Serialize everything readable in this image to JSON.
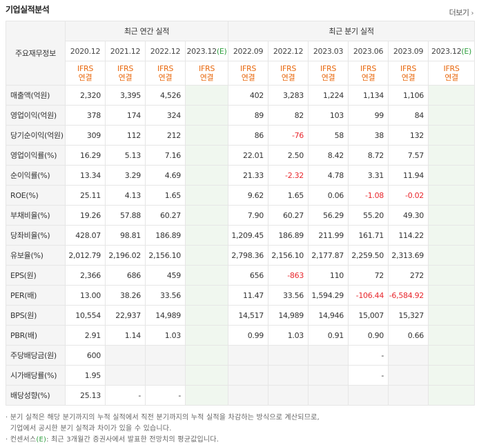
{
  "header": {
    "title": "기업실적분석",
    "more_label": "더보기"
  },
  "table": {
    "label_header": "주요재무정보",
    "annual_group": "최근 연간 실적",
    "quarter_group": "최근 분기 실적",
    "periods": [
      "2020.12",
      "2021.12",
      "2022.12",
      "2023.12",
      "2022.09",
      "2022.12",
      "2023.03",
      "2023.06",
      "2023.09",
      "2023.12"
    ],
    "estimate_suffix": "(E)",
    "basis_top": "IFRS",
    "basis_bottom": "연결",
    "rows": [
      {
        "label": "매출액(억원)",
        "values": [
          "2,320",
          "3,395",
          "4,526",
          "",
          "402",
          "3,283",
          "1,224",
          "1,134",
          "1,106",
          ""
        ]
      },
      {
        "label": "영업이익(억원)",
        "values": [
          "378",
          "174",
          "324",
          "",
          "89",
          "82",
          "103",
          "99",
          "84",
          ""
        ]
      },
      {
        "label": "당기순이익(억원)",
        "values": [
          "309",
          "112",
          "212",
          "",
          "86",
          "-76",
          "58",
          "38",
          "132",
          ""
        ]
      },
      {
        "label": "영업이익률(%)",
        "values": [
          "16.29",
          "5.13",
          "7.16",
          "",
          "22.01",
          "2.50",
          "8.42",
          "8.72",
          "7.57",
          ""
        ]
      },
      {
        "label": "순이익률(%)",
        "values": [
          "13.34",
          "3.29",
          "4.69",
          "",
          "21.33",
          "-2.32",
          "4.78",
          "3.31",
          "11.94",
          ""
        ]
      },
      {
        "label": "ROE(%)",
        "values": [
          "25.11",
          "4.13",
          "1.65",
          "",
          "9.62",
          "1.65",
          "0.06",
          "-1.08",
          "-0.02",
          ""
        ]
      },
      {
        "label": "부채비율(%)",
        "values": [
          "19.26",
          "57.88",
          "60.27",
          "",
          "7.90",
          "60.27",
          "56.29",
          "55.20",
          "49.30",
          ""
        ]
      },
      {
        "label": "당좌비율(%)",
        "values": [
          "428.07",
          "98.81",
          "186.89",
          "",
          "1,209.45",
          "186.89",
          "211.99",
          "161.71",
          "114.22",
          ""
        ]
      },
      {
        "label": "유보율(%)",
        "values": [
          "2,012.79",
          "2,196.02",
          "2,156.10",
          "",
          "2,798.36",
          "2,156.10",
          "2,177.87",
          "2,259.50",
          "2,313.69",
          ""
        ]
      },
      {
        "label": "EPS(원)",
        "values": [
          "2,366",
          "686",
          "459",
          "",
          "656",
          "-863",
          "110",
          "72",
          "272",
          ""
        ]
      },
      {
        "label": "PER(배)",
        "values": [
          "13.00",
          "38.26",
          "33.56",
          "",
          "11.47",
          "33.56",
          "1,594.29",
          "-106.44",
          "-6,584.92",
          ""
        ]
      },
      {
        "label": "BPS(원)",
        "values": [
          "10,554",
          "22,937",
          "14,989",
          "",
          "14,517",
          "14,989",
          "14,946",
          "15,007",
          "15,327",
          ""
        ]
      },
      {
        "label": "PBR(배)",
        "values": [
          "2.91",
          "1.14",
          "1.03",
          "",
          "0.99",
          "1.03",
          "0.91",
          "0.90",
          "0.66",
          ""
        ]
      },
      {
        "label": "주당배당금(원)",
        "values": [
          "600",
          "",
          "",
          "",
          "",
          "",
          "",
          "-",
          "",
          ""
        ]
      },
      {
        "label": "시가배당률(%)",
        "values": [
          "1.95",
          "",
          "",
          "",
          "",
          "",
          "",
          "-",
          "",
          ""
        ]
      },
      {
        "label": "배당성향(%)",
        "values": [
          "25.13",
          "-",
          "-",
          "",
          "",
          "",
          "",
          "",
          "",
          ""
        ]
      }
    ]
  },
  "notes": {
    "line1": "· 분기 실적은 해당 분기까지의 누적 실적에서 직전 분기까지의 누적 실적을 차감하는 방식으로 계산되므로,",
    "line2": "  기업에서 공시한 분기 실적과 차이가 있을 수 있습니다.",
    "line3_prefix": "· 컨센서스",
    "line3_mark": "(E)",
    "line3_suffix": ": 최근 3개월간 증권사에서 발표한 전망치의 평균값입니다."
  }
}
